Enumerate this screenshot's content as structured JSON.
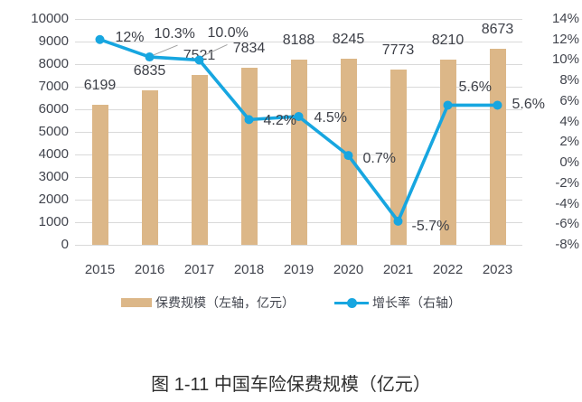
{
  "caption": "图 1-11 中国车险保费规模（亿元）",
  "legend": {
    "bar_label": "保费规模（左轴，亿元）",
    "line_label": "增长率（右轴）"
  },
  "colors": {
    "bar": "#dcb788",
    "line": "#17a6e0",
    "grid": "#d9d9d9",
    "axis_text": "#42454e",
    "data_label_text": "#3c3f47",
    "leader_line": "#a0a0a0",
    "caption_text": "#2e2e2e"
  },
  "chart_data": {
    "type": "bar",
    "subtype": "combo bar+line, dual axis",
    "title": "图 1-11 中国车险保险费规模（亿元）",
    "categories": [
      "2015",
      "2016",
      "2017",
      "2018",
      "2019",
      "2020",
      "2021",
      "2022",
      "2023"
    ],
    "series": [
      {
        "name": "保费规模（左轴，亿元）",
        "type": "bar",
        "axis": "left",
        "color": "#dcb788",
        "values": [
          6199,
          6835,
          7521,
          7834,
          8188,
          8245,
          7773,
          8210,
          8673
        ],
        "labels": [
          "6199",
          "6835",
          "7521",
          "7834",
          "8188",
          "8245",
          "7773",
          "8210",
          "8673"
        ]
      },
      {
        "name": "增长率（右轴）",
        "type": "line",
        "axis": "right",
        "color": "#17a6e0",
        "values": [
          12,
          10.3,
          10.0,
          4.2,
          4.5,
          0.7,
          -5.7,
          5.6,
          5.6
        ],
        "labels": [
          "12%",
          "10.3%",
          "10.0%",
          "4.2%",
          "4.5%",
          "0.7%",
          "-5.7%",
          "5.6%",
          "5.6%"
        ]
      }
    ],
    "left_axis": {
      "min": 0,
      "max": 10000,
      "step": 1000,
      "ticks": [
        "0",
        "1000",
        "2000",
        "3000",
        "4000",
        "5000",
        "6000",
        "7000",
        "8000",
        "9000",
        "10000"
      ]
    },
    "right_axis": {
      "min": -8,
      "max": 14,
      "step": 2,
      "ticks": [
        "-8%",
        "-6%",
        "-4%",
        "-2%",
        "0%",
        "2%",
        "4%",
        "6%",
        "8%",
        "10%",
        "12%",
        "14%"
      ]
    },
    "grid": true,
    "legend_position": "bottom"
  }
}
